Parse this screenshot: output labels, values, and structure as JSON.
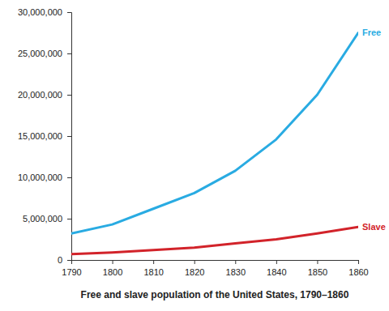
{
  "chart_data": {
    "type": "line",
    "title": "Free and slave population of the United States, 1790–1860",
    "x": [
      1790,
      1800,
      1810,
      1820,
      1830,
      1840,
      1850,
      1860
    ],
    "series": [
      {
        "name": "Free",
        "color": "#29abe2",
        "values": [
          3200000,
          4300000,
          6200000,
          8100000,
          10800000,
          14600000,
          20000000,
          27500000
        ]
      },
      {
        "name": "Slave",
        "color": "#d2232a",
        "values": [
          700000,
          900000,
          1200000,
          1500000,
          2000000,
          2500000,
          3200000,
          4000000
        ]
      }
    ],
    "xlim": [
      1790,
      1860
    ],
    "xticks": [
      1790,
      1800,
      1810,
      1820,
      1830,
      1840,
      1850,
      1860
    ],
    "ylim": [
      0,
      30000000
    ],
    "yticks": [
      0,
      {
        "value": 5000000,
        "label": "5,000,000"
      },
      {
        "value": 10000000,
        "label": "10,000,000"
      },
      {
        "value": 15000000,
        "label": "15,000,000"
      },
      {
        "value": 20000000,
        "label": "20,000,000"
      },
      {
        "value": 25000000,
        "label": "25,000,000"
      },
      {
        "value": 30000000,
        "label": "30,000,000"
      }
    ],
    "grid": false
  }
}
